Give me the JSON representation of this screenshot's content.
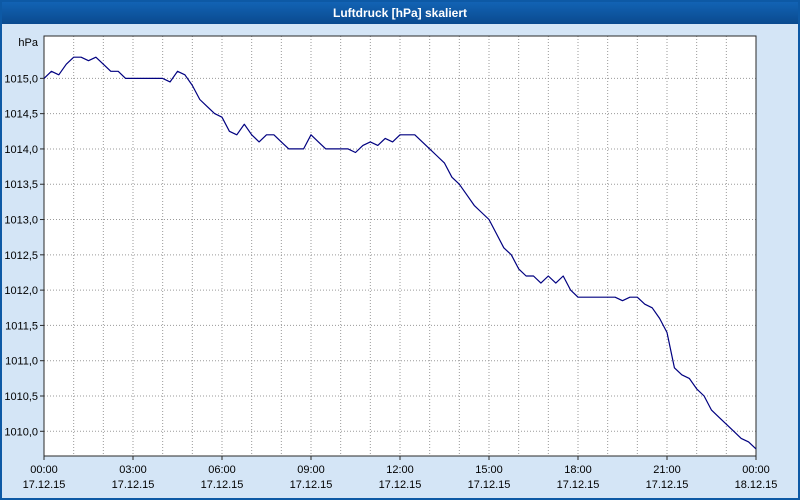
{
  "window": {
    "title": "Luftdruck [hPa] skaliert"
  },
  "colors": {
    "titlebar": "#0d59a5",
    "background": "#d4e5f6",
    "plot_bg": "#ffffff",
    "grid": "#9a9a9a",
    "axis": "#2a2a2a",
    "text": "#000000",
    "line": "#000080"
  },
  "chart_data": {
    "type": "line",
    "title": "Luftdruck [hPa] skaliert",
    "ylabel": "hPa",
    "xlabel": "",
    "grid": true,
    "legend": "none",
    "ylim": [
      1009.65,
      1015.6
    ],
    "xlim_hours": [
      0,
      24
    ],
    "sample_interval_hours": 0.25,
    "y_ticks": [
      {
        "v": 1015.0,
        "label": "1015,0"
      },
      {
        "v": 1014.5,
        "label": "1014,5"
      },
      {
        "v": 1014.0,
        "label": "1014,0"
      },
      {
        "v": 1013.5,
        "label": "1013,5"
      },
      {
        "v": 1013.0,
        "label": "1013,0"
      },
      {
        "v": 1012.5,
        "label": "1012,5"
      },
      {
        "v": 1012.0,
        "label": "1012,0"
      },
      {
        "v": 1011.5,
        "label": "1011,5"
      },
      {
        "v": 1011.0,
        "label": "1011,0"
      },
      {
        "v": 1010.5,
        "label": "1010,5"
      },
      {
        "v": 1010.0,
        "label": "1010,0"
      }
    ],
    "x_ticks": [
      {
        "h": 0,
        "time": "00:00",
        "date": "17.12.15"
      },
      {
        "h": 3,
        "time": "03:00",
        "date": "17.12.15"
      },
      {
        "h": 6,
        "time": "06:00",
        "date": "17.12.15"
      },
      {
        "h": 9,
        "time": "09:00",
        "date": "17.12.15"
      },
      {
        "h": 12,
        "time": "12:00",
        "date": "17.12.15"
      },
      {
        "h": 15,
        "time": "15:00",
        "date": "17.12.15"
      },
      {
        "h": 18,
        "time": "18:00",
        "date": "17.12.15"
      },
      {
        "h": 21,
        "time": "21:00",
        "date": "17.12.15"
      },
      {
        "h": 24,
        "time": "00:00",
        "date": "18.12.15"
      }
    ],
    "series": [
      {
        "name": "Luftdruck",
        "color": "#000080",
        "values": [
          1015.0,
          1015.1,
          1015.05,
          1015.2,
          1015.3,
          1015.3,
          1015.25,
          1015.3,
          1015.2,
          1015.1,
          1015.1,
          1015.0,
          1015.0,
          1015.0,
          1015.0,
          1015.0,
          1015.0,
          1014.95,
          1015.1,
          1015.05,
          1014.9,
          1014.7,
          1014.6,
          1014.5,
          1014.45,
          1014.25,
          1014.2,
          1014.35,
          1014.2,
          1014.1,
          1014.2,
          1014.2,
          1014.1,
          1014.0,
          1014.0,
          1014.0,
          1014.2,
          1014.1,
          1014.0,
          1014.0,
          1014.0,
          1014.0,
          1013.95,
          1014.05,
          1014.1,
          1014.05,
          1014.15,
          1014.1,
          1014.2,
          1014.2,
          1014.2,
          1014.1,
          1014.0,
          1013.9,
          1013.8,
          1013.6,
          1013.5,
          1013.35,
          1013.2,
          1013.1,
          1013.0,
          1012.8,
          1012.6,
          1012.5,
          1012.3,
          1012.2,
          1012.2,
          1012.1,
          1012.2,
          1012.1,
          1012.2,
          1012.0,
          1011.9,
          1011.9,
          1011.9,
          1011.9,
          1011.9,
          1011.9,
          1011.85,
          1011.9,
          1011.9,
          1011.8,
          1011.75,
          1011.6,
          1011.4,
          1010.9,
          1010.8,
          1010.75,
          1010.6,
          1010.5,
          1010.3,
          1010.2,
          1010.1,
          1010.0,
          1009.9,
          1009.85,
          1009.75
        ]
      }
    ]
  }
}
